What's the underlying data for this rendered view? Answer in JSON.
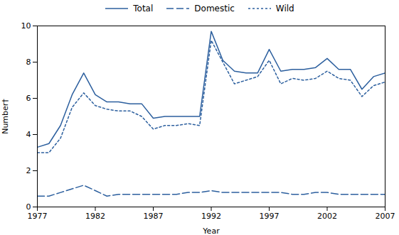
{
  "chart_data": {
    "type": "line",
    "x": [
      1977,
      1978,
      1979,
      1980,
      1981,
      1982,
      1983,
      1984,
      1985,
      1986,
      1987,
      1988,
      1989,
      1990,
      1991,
      1992,
      1993,
      1994,
      1995,
      1996,
      1997,
      1998,
      1999,
      2000,
      2001,
      2002,
      2003,
      2004,
      2005,
      2006,
      2007
    ],
    "series": [
      {
        "name": "Total",
        "color": "#2c5f9e",
        "line_style": "solid",
        "values": [
          3.3,
          3.5,
          4.5,
          6.2,
          7.4,
          6.2,
          5.8,
          5.8,
          5.7,
          5.7,
          4.9,
          5.0,
          5.0,
          5.0,
          5.0,
          9.7,
          8.1,
          7.5,
          7.4,
          7.4,
          8.7,
          7.5,
          7.6,
          7.6,
          7.7,
          8.2,
          7.6,
          7.6,
          6.5,
          7.2,
          7.4
        ]
      },
      {
        "name": "Domestic",
        "color": "#2c5f9e",
        "line_style": "dashed",
        "values": [
          0.6,
          0.6,
          0.8,
          1.0,
          1.2,
          0.9,
          0.6,
          0.7,
          0.7,
          0.7,
          0.7,
          0.7,
          0.7,
          0.8,
          0.8,
          0.9,
          0.8,
          0.8,
          0.8,
          0.8,
          0.8,
          0.8,
          0.7,
          0.7,
          0.8,
          0.8,
          0.7,
          0.7,
          0.7,
          0.7,
          0.7
        ]
      },
      {
        "name": "Wild",
        "color": "#2c5f9e",
        "line_style": "dotted",
        "values": [
          3.0,
          3.0,
          3.8,
          5.5,
          6.3,
          5.6,
          5.4,
          5.3,
          5.3,
          5.0,
          4.3,
          4.5,
          4.5,
          4.6,
          4.5,
          9.2,
          8.0,
          6.8,
          7.0,
          7.2,
          8.1,
          6.8,
          7.1,
          7.0,
          7.1,
          7.5,
          7.1,
          7.0,
          6.1,
          6.7,
          6.9
        ]
      }
    ],
    "xlabel": "Year",
    "ylabel": "Number†",
    "xlim": [
      1977,
      2007
    ],
    "xticks": [
      1977,
      1982,
      1987,
      1992,
      1997,
      2002,
      2007
    ],
    "ylim": [
      0,
      10
    ],
    "yticks": [
      0,
      2,
      4,
      6,
      8,
      10
    ],
    "grid": false,
    "legend": "top"
  }
}
